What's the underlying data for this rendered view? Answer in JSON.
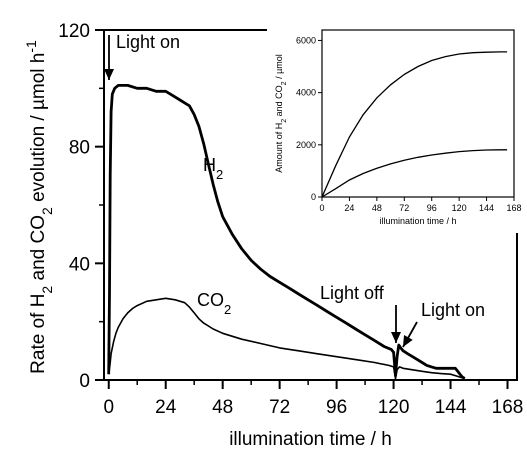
{
  "chart_data": [
    {
      "type": "line",
      "xlabel": "illumination time / h",
      "ylabel_parts": [
        "Rate of H",
        "2",
        " and CO",
        "2",
        " evolution / µmol h",
        "-1"
      ],
      "xlim": [
        -2,
        172
      ],
      "ylim": [
        0,
        120
      ],
      "xticks": [
        0,
        24,
        48,
        72,
        96,
        120,
        144,
        168
      ],
      "yticks": [
        0,
        40,
        80,
        120
      ],
      "grid": false,
      "series": [
        {
          "name": "H2",
          "label_parts": [
            "H",
            "2"
          ],
          "x": [
            0,
            0.3,
            0.6,
            1.0,
            1.5,
            2.5,
            4,
            8,
            12,
            16,
            20,
            24,
            26,
            28,
            30,
            32,
            34,
            36,
            38,
            40,
            42,
            44,
            46,
            48,
            52,
            56,
            60,
            64,
            68,
            72,
            76,
            80,
            84,
            88,
            92,
            96,
            100,
            104,
            108,
            112,
            116,
            119,
            120,
            120.8,
            121.5,
            122.2,
            123,
            124,
            126,
            128,
            130,
            132,
            134,
            136,
            138,
            140,
            142,
            144,
            146,
            147,
            148,
            149,
            150
          ],
          "y": [
            2,
            30,
            70,
            92,
            98,
            100,
            101,
            101,
            100,
            100,
            99,
            99,
            98,
            97,
            96,
            95,
            94,
            91,
            87,
            81,
            74,
            67,
            61,
            56,
            50,
            45,
            41,
            38,
            35.5,
            33.5,
            31.5,
            29.5,
            27.5,
            25.5,
            23.5,
            21.5,
            19.5,
            17.5,
            15.5,
            13.5,
            11.5,
            10.5,
            9.5,
            1.5,
            8,
            12,
            11,
            10,
            9,
            8,
            7,
            6,
            5,
            4.5,
            4,
            4,
            4,
            4,
            4,
            3,
            2,
            1,
            0.5
          ]
        },
        {
          "name": "CO2",
          "label_parts": [
            "CO",
            "2"
          ],
          "x": [
            0,
            0.5,
            1,
            2,
            3,
            4,
            6,
            8,
            10,
            12,
            16,
            20,
            24,
            28,
            32,
            34,
            36,
            38,
            40,
            44,
            48,
            56,
            64,
            72,
            80,
            88,
            96,
            104,
            112,
            118,
            120,
            120.8,
            121.5,
            122.5,
            124,
            128,
            132,
            136,
            140,
            144,
            146,
            148,
            150
          ],
          "y": [
            2,
            5,
            9,
            13,
            16,
            18,
            21,
            23,
            24.5,
            25.5,
            27,
            27.5,
            28,
            27.5,
            26.5,
            25,
            23,
            21,
            19.5,
            17.5,
            16,
            14,
            12.5,
            11,
            10,
            9,
            8,
            7,
            6,
            5,
            4.5,
            0.5,
            3.5,
            4.5,
            4,
            3.5,
            3,
            2.5,
            2.2,
            2,
            1.5,
            1,
            0.5
          ]
        }
      ],
      "annotations": [
        {
          "text": "Light on",
          "x": 2.5,
          "y": 100
        },
        {
          "text": "Light off",
          "x": 120.5,
          "y": 12
        },
        {
          "text": "Light on",
          "x": 121.8,
          "y": 9
        }
      ]
    },
    {
      "type": "line",
      "xlabel": "illumination time / h",
      "ylabel_parts": [
        "Amount of H",
        "2",
        " and CO",
        "2",
        " / µmol"
      ],
      "xlim": [
        0,
        168
      ],
      "ylim": [
        0,
        6400
      ],
      "xticks": [
        0,
        24,
        48,
        72,
        96,
        120,
        144,
        168
      ],
      "yticks": [
        0,
        2000,
        4000,
        6000
      ],
      "grid": false,
      "series": [
        {
          "x": [
            0,
            12,
            24,
            36,
            48,
            60,
            72,
            84,
            96,
            108,
            120,
            132,
            144,
            156,
            162
          ],
          "y": [
            0,
            1200,
            2300,
            3150,
            3800,
            4300,
            4700,
            5000,
            5230,
            5380,
            5480,
            5530,
            5550,
            5560,
            5560
          ]
        },
        {
          "x": [
            0,
            12,
            24,
            36,
            48,
            60,
            72,
            84,
            96,
            108,
            120,
            132,
            144,
            156,
            162
          ],
          "y": [
            0,
            320,
            650,
            900,
            1100,
            1270,
            1410,
            1520,
            1610,
            1680,
            1740,
            1780,
            1800,
            1810,
            1810
          ]
        }
      ]
    }
  ]
}
